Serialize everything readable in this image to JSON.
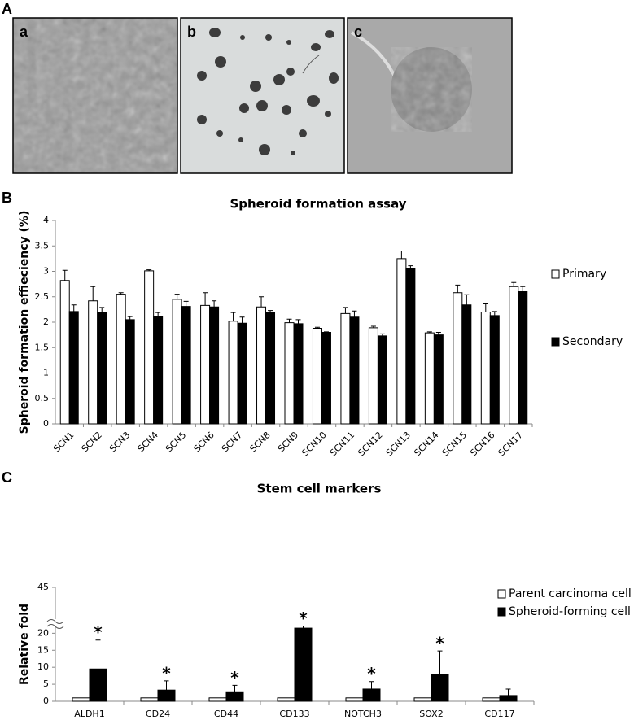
{
  "panel_labels": [
    "A",
    "B",
    "C"
  ],
  "image_labels": [
    "a",
    "b",
    "c"
  ],
  "chart_data": [
    {
      "type": "bar",
      "title": "Spheroid formation assay",
      "ylabel": "Spheroid formation effieciency (%)",
      "categories": [
        "SCN1",
        "SCN2",
        "SCN3",
        "SCN4",
        "SCN5",
        "SCN6",
        "SCN7",
        "SCN8",
        "SCN9",
        "SCN10",
        "SCN11",
        "SCN12",
        "SCN13",
        "SCN14",
        "SCN15",
        "SCN16",
        "SCN17"
      ],
      "series": [
        {
          "name": "Primary",
          "color": "#ffffff",
          "values": [
            2.82,
            2.42,
            2.55,
            3.01,
            2.45,
            2.33,
            2.02,
            2.3,
            1.99,
            1.88,
            2.17,
            1.89,
            3.25,
            1.79,
            2.58,
            2.2,
            2.7
          ],
          "errors": [
            0.2,
            0.28,
            0.03,
            0.02,
            0.1,
            0.25,
            0.17,
            0.2,
            0.07,
            0.02,
            0.12,
            0.03,
            0.15,
            0.02,
            0.15,
            0.16,
            0.08
          ]
        },
        {
          "name": "Secondary",
          "color": "#000000",
          "values": [
            2.21,
            2.19,
            2.05,
            2.12,
            2.31,
            2.3,
            1.98,
            2.19,
            1.97,
            1.8,
            2.1,
            1.73,
            3.06,
            1.75,
            2.34,
            2.13,
            2.6
          ],
          "errors": [
            0.13,
            0.1,
            0.06,
            0.07,
            0.1,
            0.12,
            0.12,
            0.04,
            0.08,
            0.01,
            0.12,
            0.04,
            0.05,
            0.05,
            0.2,
            0.08,
            0.1
          ]
        }
      ],
      "ylim": [
        0,
        4
      ],
      "yticks": [
        0,
        0.5,
        1,
        1.5,
        2,
        2.5,
        3,
        3.5,
        4
      ],
      "xtick_rotation": -45,
      "legend": "right"
    },
    {
      "type": "bar",
      "title": "Stem cell markers",
      "ylabel": "Relative fold",
      "categories": [
        "ALDH1",
        "CD24",
        "CD44",
        "CD133",
        "NOTCH3",
        "SOX2",
        "CD117"
      ],
      "series": [
        {
          "name": "Parent carcinoma cell",
          "color": "#ffffff",
          "values": [
            1,
            1,
            1,
            1,
            1,
            1,
            1
          ],
          "errors": [
            0,
            0,
            0,
            0,
            0,
            0,
            0
          ]
        },
        {
          "name": "Spheroid-forming cell",
          "color": "#000000",
          "values": [
            9.5,
            3.3,
            2.8,
            21.5,
            3.6,
            7.8,
            1.7
          ],
          "errors": [
            8.5,
            2.7,
            1.9,
            1.5,
            2.2,
            7,
            1.9
          ]
        }
      ],
      "significance": [
        "*",
        "*",
        "*",
        "*",
        "*",
        "*",
        null
      ],
      "ylim": [
        0,
        45
      ],
      "yticks": [
        0,
        5,
        10,
        15,
        20,
        45
      ],
      "axis_break": [
        22,
        43
      ],
      "xtick_rotation": 0,
      "legend": "right"
    }
  ]
}
